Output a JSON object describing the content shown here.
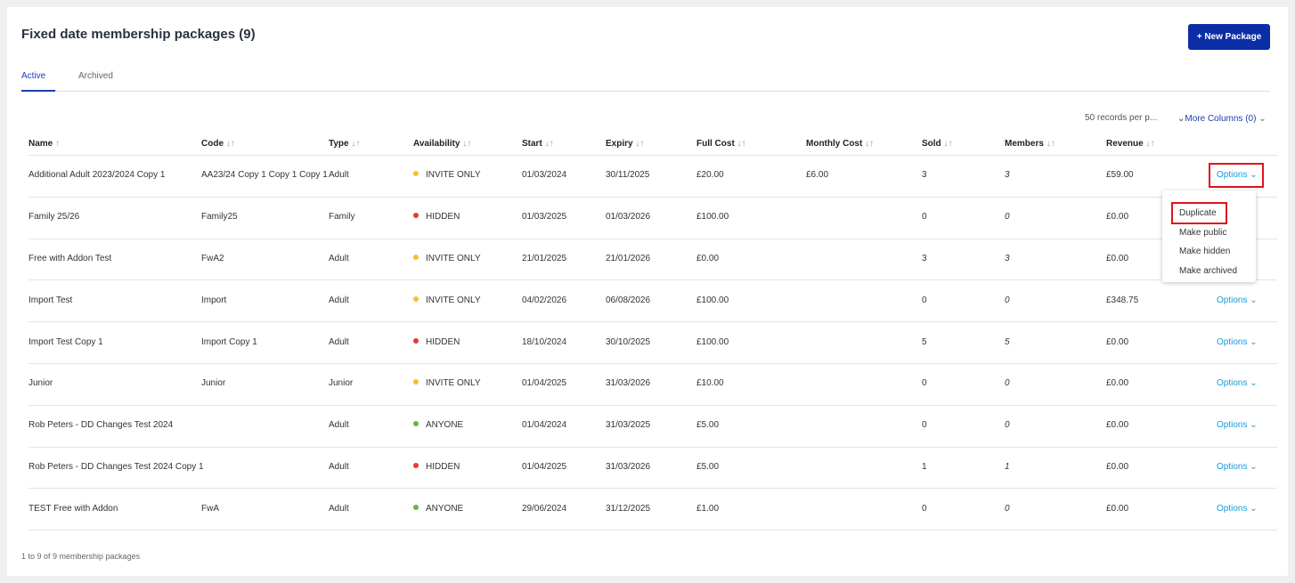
{
  "header": {
    "title": "Fixed date membership packages (9)",
    "button": "+ New Package"
  },
  "tabs": [
    "Active",
    "Archived"
  ],
  "toolbar": {
    "records_per_page": "50 records per p...",
    "more_columns": "More Columns (0)"
  },
  "table": {
    "columns": [
      "Name",
      "Code",
      "Type",
      "Availability",
      "Start",
      "Expiry",
      "Full Cost",
      "Monthly Cost",
      "Sold",
      "Members",
      "Revenue"
    ],
    "row_action": "Options",
    "rows": [
      [
        "Additional Adult 2023/2024 Copy 1",
        "AA23/24 Copy 1 Copy 1 Copy 1",
        "Adult",
        {
          "label": "INVITE ONLY",
          "color": "#f2c12e"
        },
        "01/03/2024",
        "30/11/2025",
        "£20.00",
        "£6.00",
        3,
        3,
        "£59.00"
      ],
      [
        "Family 25/26",
        "Family25",
        "Family",
        {
          "label": "HIDDEN",
          "color": "#e53935"
        },
        "01/03/2025",
        "01/03/2026",
        "£100.00",
        null,
        0,
        0,
        "£0.00"
      ],
      [
        "Free with Addon Test",
        "FwA2",
        "Adult",
        {
          "label": "INVITE ONLY",
          "color": "#f2c12e"
        },
        "21/01/2025",
        "21/01/2026",
        "£0.00",
        null,
        3,
        3,
        "£0.00"
      ],
      [
        "Import Test",
        "Import",
        "Adult",
        {
          "label": "INVITE ONLY",
          "color": "#f2c12e"
        },
        "04/02/2026",
        "06/08/2026",
        "£100.00",
        null,
        0,
        0,
        "£348.75"
      ],
      [
        "Import Test Copy 1",
        "Import Copy 1",
        "Adult",
        {
          "label": "HIDDEN",
          "color": "#e53935"
        },
        "18/10/2024",
        "30/10/2025",
        "£100.00",
        null,
        5,
        5,
        "£0.00"
      ],
      [
        "Junior",
        "Junior",
        "Junior",
        {
          "label": "INVITE ONLY",
          "color": "#f2c12e"
        },
        "01/04/2025",
        "31/03/2026",
        "£10.00",
        null,
        0,
        0,
        "£0.00"
      ],
      [
        "Rob Peters - DD Changes Test 2024",
        null,
        "Adult",
        {
          "label": "ANYONE",
          "color": "#6cb33f"
        },
        "01/04/2024",
        "31/03/2025",
        "£5.00",
        null,
        0,
        0,
        "£0.00"
      ],
      [
        "Rob Peters - DD Changes Test 2024 Copy 1",
        null,
        "Adult",
        {
          "label": "HIDDEN",
          "color": "#e53935"
        },
        "01/04/2025",
        "31/03/2026",
        "£5.00",
        null,
        1,
        1,
        "£0.00"
      ],
      [
        "TEST Free with Addon",
        "FwA",
        "Adult",
        {
          "label": "ANYONE",
          "color": "#6cb33f"
        },
        "29/06/2024",
        "31/12/2025",
        "£1.00",
        null,
        0,
        0,
        "£0.00"
      ]
    ]
  },
  "menu": {
    "items": [
      "Duplicate",
      "Make public",
      "Make hidden",
      "Make archived"
    ]
  },
  "footer": "1 to 9 of 9 membership packages"
}
